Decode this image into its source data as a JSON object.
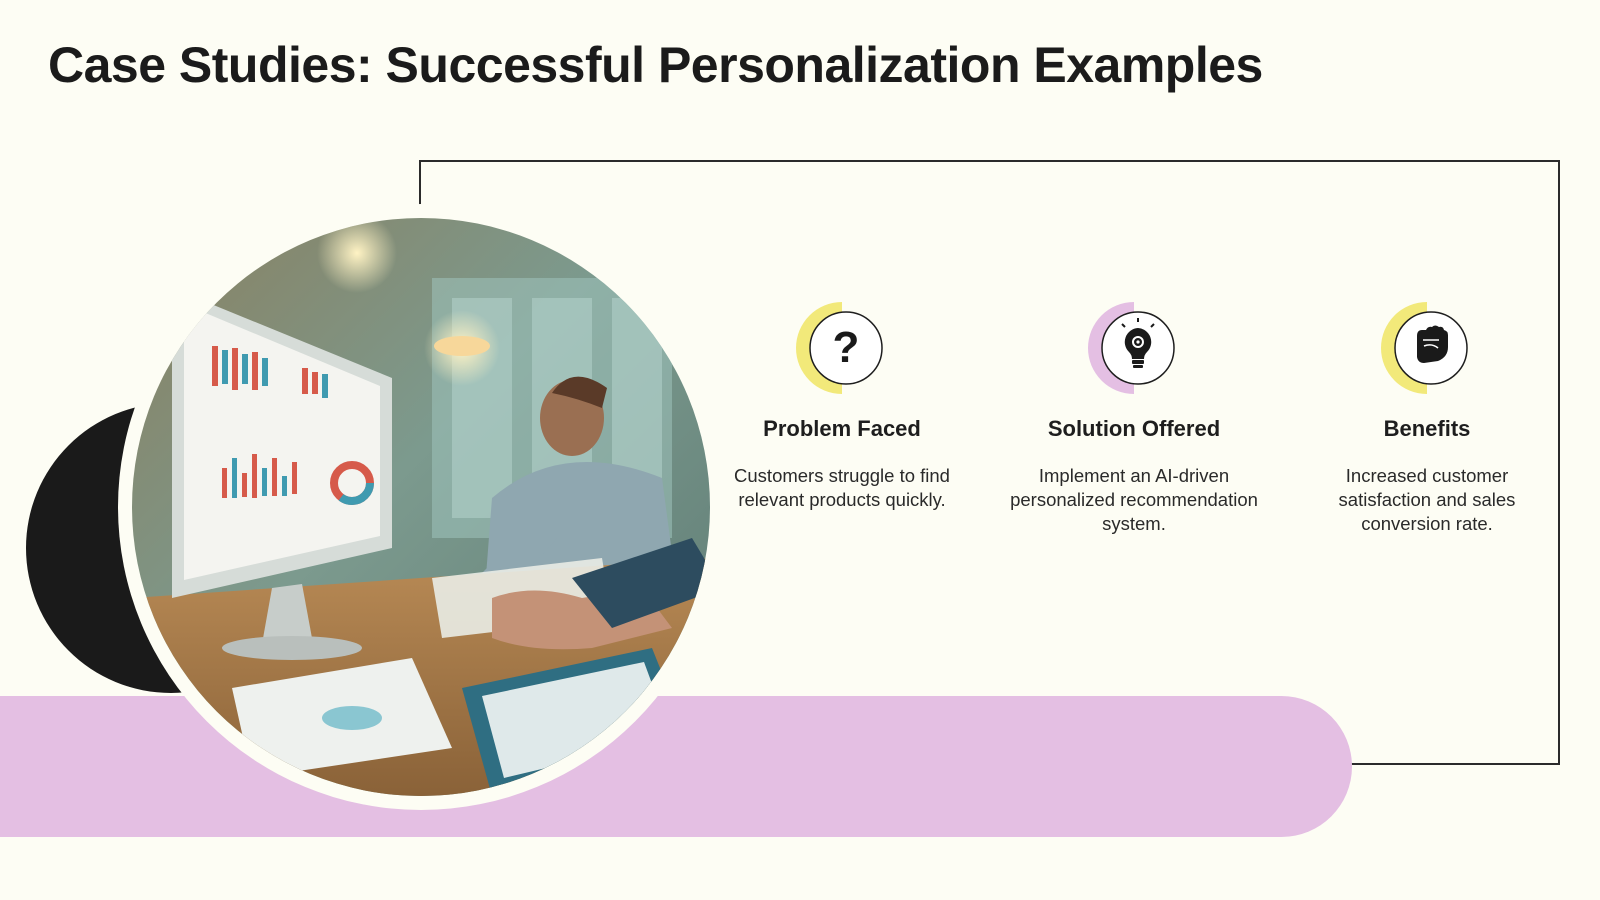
{
  "slide": {
    "title": "Case Studies: Successful Personalization Examples"
  },
  "colors": {
    "background": "#fdfdf4",
    "accent_yellow": "#f2e97a",
    "accent_pink": "#e4bfe3",
    "dark": "#1a1a1a"
  },
  "image": {
    "icon": "office-analytics-photo"
  },
  "columns": [
    {
      "icon": "question-mark-icon",
      "accent": "#f2e97a",
      "title": "Problem Faced",
      "text": "Customers struggle to find relevant products quickly."
    },
    {
      "icon": "lightbulb-gear-icon",
      "accent": "#e4bfe3",
      "title": "Solution Offered",
      "text": "Implement an AI-driven personalized recommendation system."
    },
    {
      "icon": "raised-fist-icon",
      "accent": "#f2e97a",
      "title": "Benefits",
      "text": "Increased customer satisfaction and sales conversion rate."
    }
  ]
}
